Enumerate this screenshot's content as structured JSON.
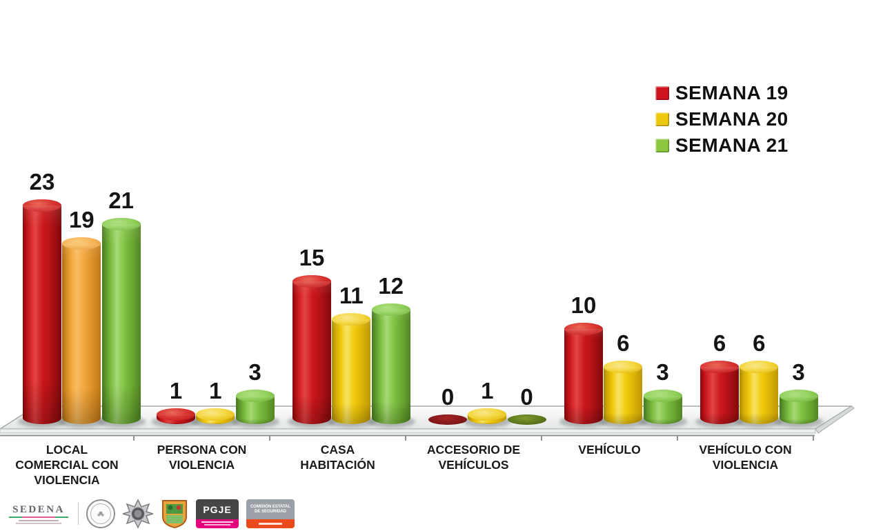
{
  "chart_data": {
    "type": "bar",
    "style": "3d-cylinder",
    "title": "",
    "xlabel": "",
    "ylabel": "",
    "ylim": [
      0,
      25
    ],
    "grid": false,
    "legend_position": "top-right",
    "categories": [
      "LOCAL COMERCIAL CON VIOLENCIA",
      "PERSONA CON VIOLENCIA",
      "CASA HABITACIÓN",
      "ACCESORIO DE VEHÍCULOS",
      "VEHÍCULO",
      "VEHÍCULO CON VIOLENCIA"
    ],
    "category_labels": [
      "LOCAL\nCOMERCIAL CON\nVIOLENCIA",
      "PERSONA CON\nVIOLENCIA",
      "CASA\nHABITACIÓN",
      "ACCESORIO DE\nVEHÍCULOS",
      "VEHÍCULO",
      "VEHÍCULO CON\nVIOLENCIA"
    ],
    "series": [
      {
        "name": "SEMANA 19",
        "color": "#cf1420",
        "values": [
          23,
          1,
          15,
          0,
          10,
          6
        ]
      },
      {
        "name": "SEMANA 20",
        "color": "#edc80e",
        "values": [
          19,
          1,
          11,
          1,
          6,
          6
        ]
      },
      {
        "name": "SEMANA 21",
        "color": "#8dc63f",
        "values": [
          21,
          3,
          12,
          0,
          3,
          3
        ]
      }
    ],
    "bar_color_overrides": [
      {
        "category_index": 0,
        "series_index": 1,
        "style": "orange",
        "color": "#f0a63e"
      }
    ]
  },
  "footer": {
    "sedena_text": "SEDENA",
    "pgje_text": "PGJE",
    "comision_line1": "COMISIÓN ESTATAL",
    "comision_line2": "DE SEGURIDAD"
  }
}
